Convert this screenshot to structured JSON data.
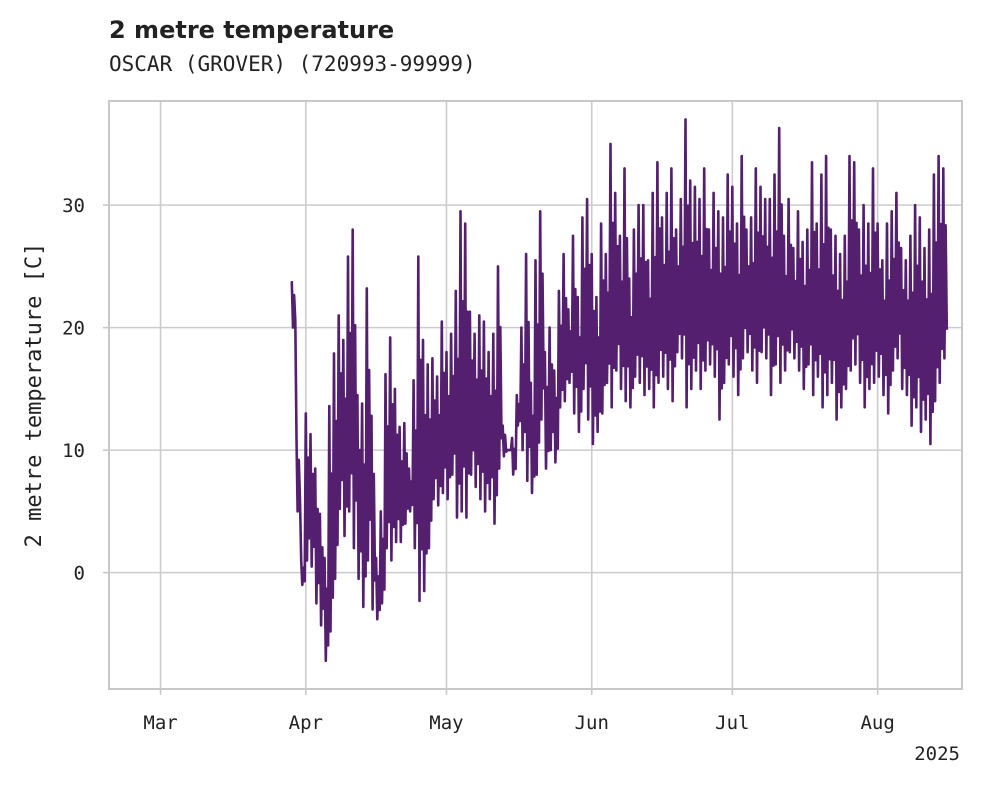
{
  "chart_data": {
    "type": "line",
    "title": "2 metre temperature",
    "subtitle": "OSCAR (GROVER) (720993-99999)",
    "ylabel": "2 metre temperature [C]",
    "xlabel": "",
    "x_year_label": "2025",
    "x_range": [
      "2025-02-18",
      "2025-08-19"
    ],
    "ylim": [
      -9.5,
      38.5
    ],
    "y_ticks": [
      0,
      10,
      20,
      30
    ],
    "x_ticks": [
      {
        "date": "2025-03-01",
        "label": "Mar"
      },
      {
        "date": "2025-04-01",
        "label": "Apr"
      },
      {
        "date": "2025-05-01",
        "label": "May"
      },
      {
        "date": "2025-06-01",
        "label": "Jun"
      },
      {
        "date": "2025-07-01",
        "label": "Jul"
      },
      {
        "date": "2025-08-01",
        "label": "Aug"
      }
    ],
    "grid": true,
    "series": [
      {
        "color": "#541f6e",
        "x": [
          "2025-03-29",
          "2025-03-30",
          "2025-03-31",
          "2025-04-01",
          "2025-04-02",
          "2025-04-03",
          "2025-04-04",
          "2025-04-05",
          "2025-04-06",
          "2025-04-07",
          "2025-04-08",
          "2025-04-09",
          "2025-04-10",
          "2025-04-11",
          "2025-04-12",
          "2025-04-13",
          "2025-04-14",
          "2025-04-15",
          "2025-04-16",
          "2025-04-17",
          "2025-04-18",
          "2025-04-19",
          "2025-04-20",
          "2025-04-21",
          "2025-04-22",
          "2025-04-23",
          "2025-04-24",
          "2025-04-25",
          "2025-04-26",
          "2025-04-27",
          "2025-04-28",
          "2025-04-29",
          "2025-04-30",
          "2025-05-01",
          "2025-05-02",
          "2025-05-03",
          "2025-05-04",
          "2025-05-05",
          "2025-05-06",
          "2025-05-07",
          "2025-05-08",
          "2025-05-09",
          "2025-05-10",
          "2025-05-11",
          "2025-05-12",
          "2025-05-13",
          "2025-05-14",
          "2025-05-15",
          "2025-05-16",
          "2025-05-17",
          "2025-05-18",
          "2025-05-19",
          "2025-05-20",
          "2025-05-21",
          "2025-05-22",
          "2025-05-23",
          "2025-05-24",
          "2025-05-25",
          "2025-05-26",
          "2025-05-27",
          "2025-05-28",
          "2025-05-29",
          "2025-05-30",
          "2025-05-31",
          "2025-06-01",
          "2025-06-02",
          "2025-06-03",
          "2025-06-04",
          "2025-06-05",
          "2025-06-06",
          "2025-06-07",
          "2025-06-08",
          "2025-06-09",
          "2025-06-10",
          "2025-06-11",
          "2025-06-12",
          "2025-06-13",
          "2025-06-14",
          "2025-06-15",
          "2025-06-16",
          "2025-06-17",
          "2025-06-18",
          "2025-06-19",
          "2025-06-20",
          "2025-06-21",
          "2025-06-22",
          "2025-06-23",
          "2025-06-24",
          "2025-06-25",
          "2025-06-26",
          "2025-06-27",
          "2025-06-28",
          "2025-06-29",
          "2025-06-30",
          "2025-07-01",
          "2025-07-02",
          "2025-07-03",
          "2025-07-04",
          "2025-07-05",
          "2025-07-06",
          "2025-07-07",
          "2025-07-08",
          "2025-07-09",
          "2025-07-10",
          "2025-07-11",
          "2025-07-12",
          "2025-07-13",
          "2025-07-14",
          "2025-07-15",
          "2025-07-16",
          "2025-07-17",
          "2025-07-18",
          "2025-07-19",
          "2025-07-20",
          "2025-07-21",
          "2025-07-22",
          "2025-07-23",
          "2025-07-24",
          "2025-07-25",
          "2025-07-26",
          "2025-07-27",
          "2025-07-28",
          "2025-07-29",
          "2025-07-30",
          "2025-07-31",
          "2025-08-01",
          "2025-08-02",
          "2025-08-03",
          "2025-08-04",
          "2025-08-05",
          "2025-08-06",
          "2025-08-07",
          "2025-08-08",
          "2025-08-09",
          "2025-08-10",
          "2025-08-11",
          "2025-08-12",
          "2025-08-13",
          "2025-08-14",
          "2025-08-15"
        ],
        "max": [
          23.8,
          11.0,
          1.0,
          13.0,
          11.3,
          8.5,
          4.8,
          1.2,
          13.6,
          17.9,
          21.0,
          19.0,
          25.8,
          28.0,
          14.5,
          13.8,
          23.2,
          12.8,
          1.2,
          5.0,
          16.2,
          19.2,
          15.0,
          11.9,
          12.2,
          8.5,
          15.7,
          25.8,
          19.0,
          17.0,
          17.5,
          16.0,
          20.5,
          18.0,
          19.5,
          23.0,
          29.5,
          28.5,
          21.3,
          19.5,
          21.0,
          20.5,
          18.0,
          19.5,
          25.0,
          12.0,
          10.0,
          11.0,
          14.5,
          20.0,
          26.0,
          15.5,
          25.5,
          29.5,
          18.0,
          20.0,
          16.5,
          23.0,
          26.0,
          21.5,
          27.5,
          22.5,
          29.0,
          30.5,
          26.0,
          22.5,
          28.5,
          26.0,
          35.0,
          31.0,
          27.5,
          33.0,
          24.0,
          28.0,
          30.0,
          30.0,
          25.5,
          31.0,
          33.5,
          29.0,
          31.0,
          33.0,
          28.0,
          30.5,
          37.0,
          32.0,
          31.5,
          30.5,
          33.0,
          28.0,
          31.0,
          29.5,
          29.0,
          32.5,
          31.5,
          28.5,
          34.0,
          28.0,
          29.0,
          33.0,
          31.5,
          30.5,
          30.5,
          32.5,
          36.3,
          27.5,
          30.5,
          26.5,
          29.5,
          27.0,
          28.0,
          33.5,
          28.5,
          32.5,
          34.0,
          28.0,
          27.5,
          26.0,
          27.5,
          34.0,
          33.5,
          28.0,
          30.0,
          28.5,
          33.0,
          28.5,
          25.5,
          28.5,
          29.5,
          31.0,
          26.5,
          25.5,
          27.5,
          30.0,
          29.0,
          26.5,
          28.0,
          32.5,
          34.0,
          33.0
        ],
        "min": [
          20.0,
          5.0,
          -1.0,
          1.0,
          0.5,
          -2.5,
          -4.3,
          -7.2,
          -4.8,
          -0.5,
          5.2,
          3.0,
          5.0,
          2.0,
          -0.5,
          -2.8,
          1.0,
          -3.0,
          -3.8,
          -2.5,
          2.0,
          1.0,
          2.5,
          2.5,
          4.0,
          5.0,
          2.0,
          -2.3,
          -1.5,
          2.0,
          6.0,
          5.5,
          6.5,
          6.0,
          8.0,
          4.5,
          5.0,
          4.5,
          8.0,
          7.0,
          6.0,
          5.0,
          6.0,
          4.0,
          8.5,
          9.5,
          10.0,
          8.0,
          12.0,
          10.0,
          7.5,
          6.5,
          8.0,
          12.5,
          8.5,
          10.0,
          9.0,
          13.5,
          14.0,
          15.5,
          13.0,
          11.5,
          15.0,
          12.5,
          10.5,
          11.5,
          13.0,
          15.5,
          13.5,
          16.5,
          15.0,
          14.0,
          13.5,
          16.0,
          15.5,
          14.5,
          15.0,
          13.5,
          15.5,
          16.0,
          15.0,
          14.0,
          18.0,
          17.5,
          13.5,
          15.0,
          16.5,
          15.0,
          16.5,
          17.0,
          16.0,
          12.5,
          15.5,
          17.0,
          16.0,
          14.5,
          17.5,
          18.0,
          16.5,
          15.5,
          18.0,
          17.5,
          14.5,
          17.0,
          15.5,
          16.5,
          18.0,
          17.5,
          16.5,
          15.0,
          17.0,
          14.5,
          16.0,
          13.5,
          14.5,
          15.5,
          12.5,
          13.5,
          15.0,
          16.5,
          17.0,
          15.5,
          13.5,
          15.0,
          15.5,
          16.0,
          14.5,
          13.0,
          16.5,
          17.5,
          15.0,
          14.5,
          12.0,
          13.5,
          11.5,
          12.5,
          10.5,
          14.0,
          15.5,
          17.5
        ]
      }
    ]
  }
}
